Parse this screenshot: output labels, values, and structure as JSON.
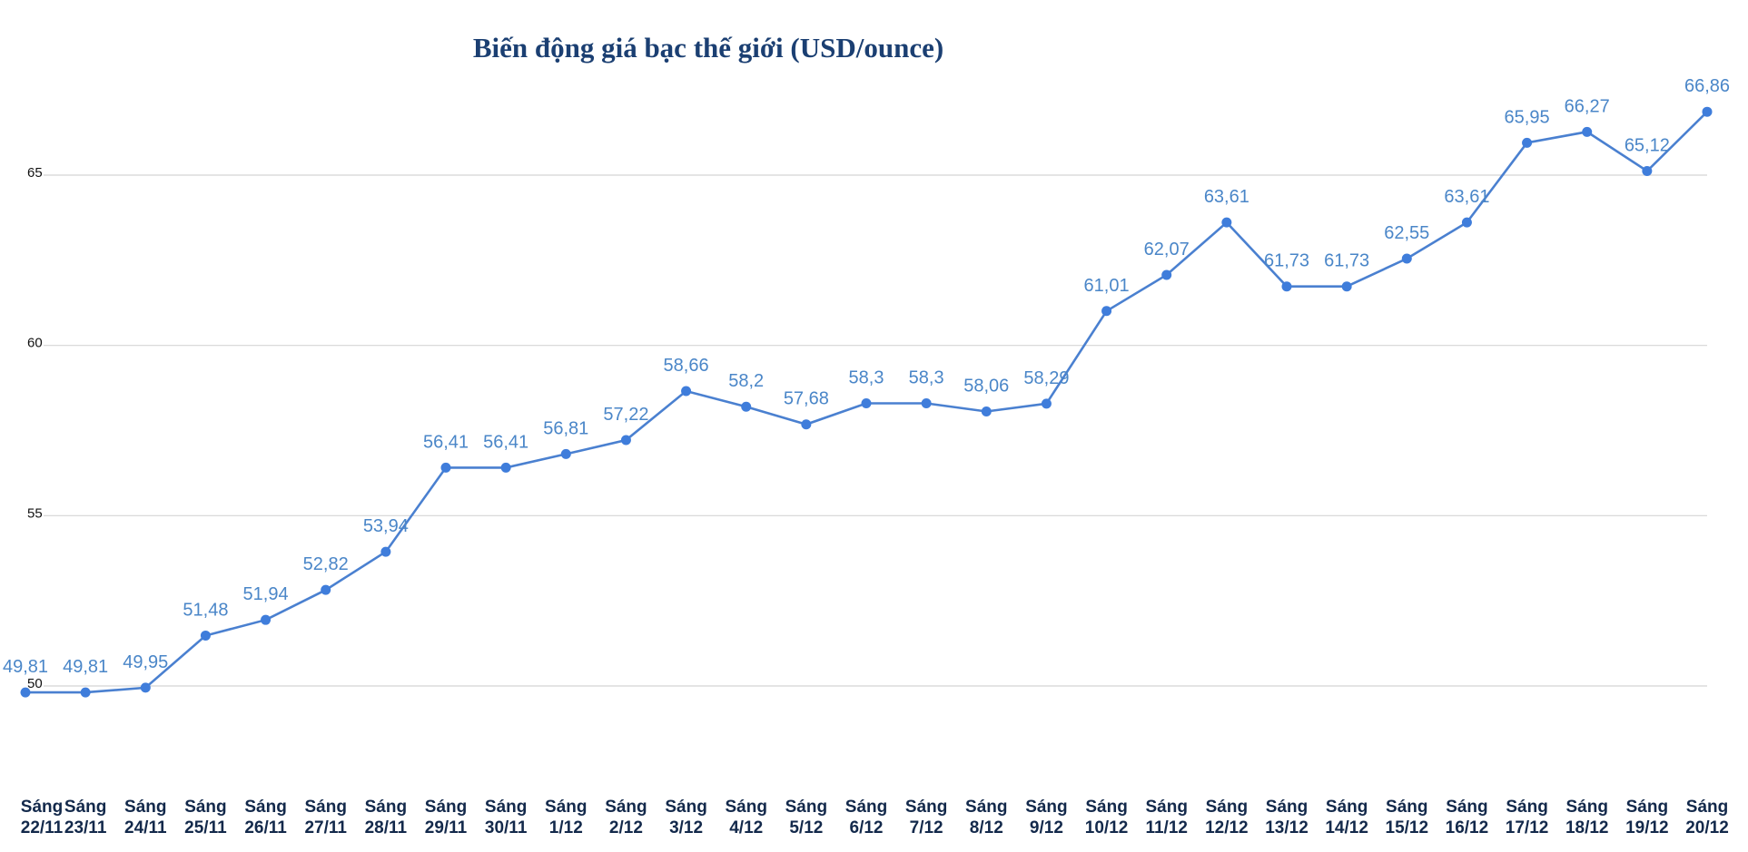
{
  "chart_data": {
    "type": "line",
    "title": "Biến động giá bạc thế giới (USD/ounce)",
    "xlabel": "",
    "ylabel": "",
    "ylim": [
      45,
      68.5
    ],
    "yticks": [
      "50",
      "55",
      "60",
      "65"
    ],
    "ytick_values": [
      50,
      55,
      60,
      65
    ],
    "grid": true,
    "legend": "none",
    "categories": [
      [
        "Sáng",
        "22/11"
      ],
      [
        "Sáng",
        "23/11"
      ],
      [
        "Sáng",
        "24/11"
      ],
      [
        "Sáng",
        "25/11"
      ],
      [
        "Sáng",
        "26/11"
      ],
      [
        "Sáng",
        "27/11"
      ],
      [
        "Sáng",
        "28/11"
      ],
      [
        "Sáng",
        "29/11"
      ],
      [
        "Sáng",
        "30/11"
      ],
      [
        "Sáng",
        "1/12"
      ],
      [
        "Sáng",
        "2/12"
      ],
      [
        "Sáng",
        "3/12"
      ],
      [
        "Sáng",
        "4/12"
      ],
      [
        "Sáng",
        "5/12"
      ],
      [
        "Sáng",
        "6/12"
      ],
      [
        "Sáng",
        "7/12"
      ],
      [
        "Sáng",
        "8/12"
      ],
      [
        "Sáng",
        "9/12"
      ],
      [
        "Sáng",
        "10/12"
      ],
      [
        "Sáng",
        "11/12"
      ],
      [
        "Sáng",
        "12/12"
      ],
      [
        "Sáng",
        "13/12"
      ],
      [
        "Sáng",
        "14/12"
      ],
      [
        "Sáng",
        "15/12"
      ],
      [
        "Sáng",
        "16/12"
      ],
      [
        "Sáng",
        "17/12"
      ],
      [
        "Sáng",
        "18/12"
      ],
      [
        "Sáng",
        "19/12"
      ],
      [
        "Sáng",
        "20/12"
      ]
    ],
    "values": [
      49.81,
      49.81,
      49.95,
      51.48,
      51.94,
      52.82,
      53.94,
      56.41,
      56.41,
      56.81,
      57.22,
      58.66,
      58.2,
      57.68,
      58.3,
      58.3,
      58.06,
      58.29,
      61.01,
      62.07,
      63.61,
      61.73,
      61.73,
      62.55,
      63.61,
      65.95,
      66.27,
      65.12,
      66.86
    ],
    "value_labels": [
      "49,81",
      "49,81",
      "49,95",
      "51,48",
      "51,94",
      "52,82",
      "53,94",
      "56,41",
      "56,41",
      "56,81",
      "57,22",
      "58,66",
      "58,2",
      "57,68",
      "58,3",
      "58,3",
      "58,06",
      "58,29",
      "61,01",
      "62,07",
      "63,61",
      "61,73",
      "61,73",
      "62,55",
      "63,61",
      "65,95",
      "66,27",
      "65,12",
      "66,86"
    ],
    "colors": {
      "line": "#4a80d0",
      "point": "#3f7ddb",
      "label": "#4a86c8",
      "title": "#1b3f72",
      "grid": "#d4d4d4"
    }
  }
}
